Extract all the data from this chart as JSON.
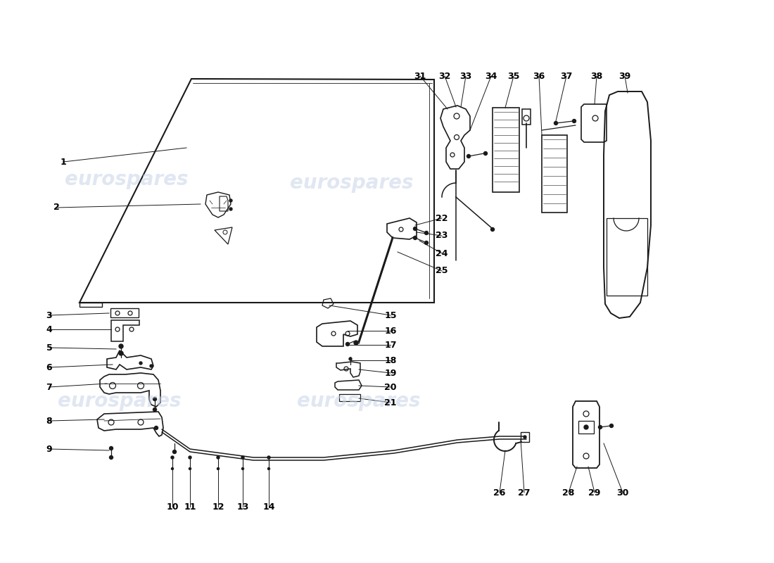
{
  "bg_color": "#ffffff",
  "line_color": "#1a1a1a",
  "watermark_color": "#c8d4e8",
  "watermark_text": "eurospares",
  "label_color": "#000000"
}
